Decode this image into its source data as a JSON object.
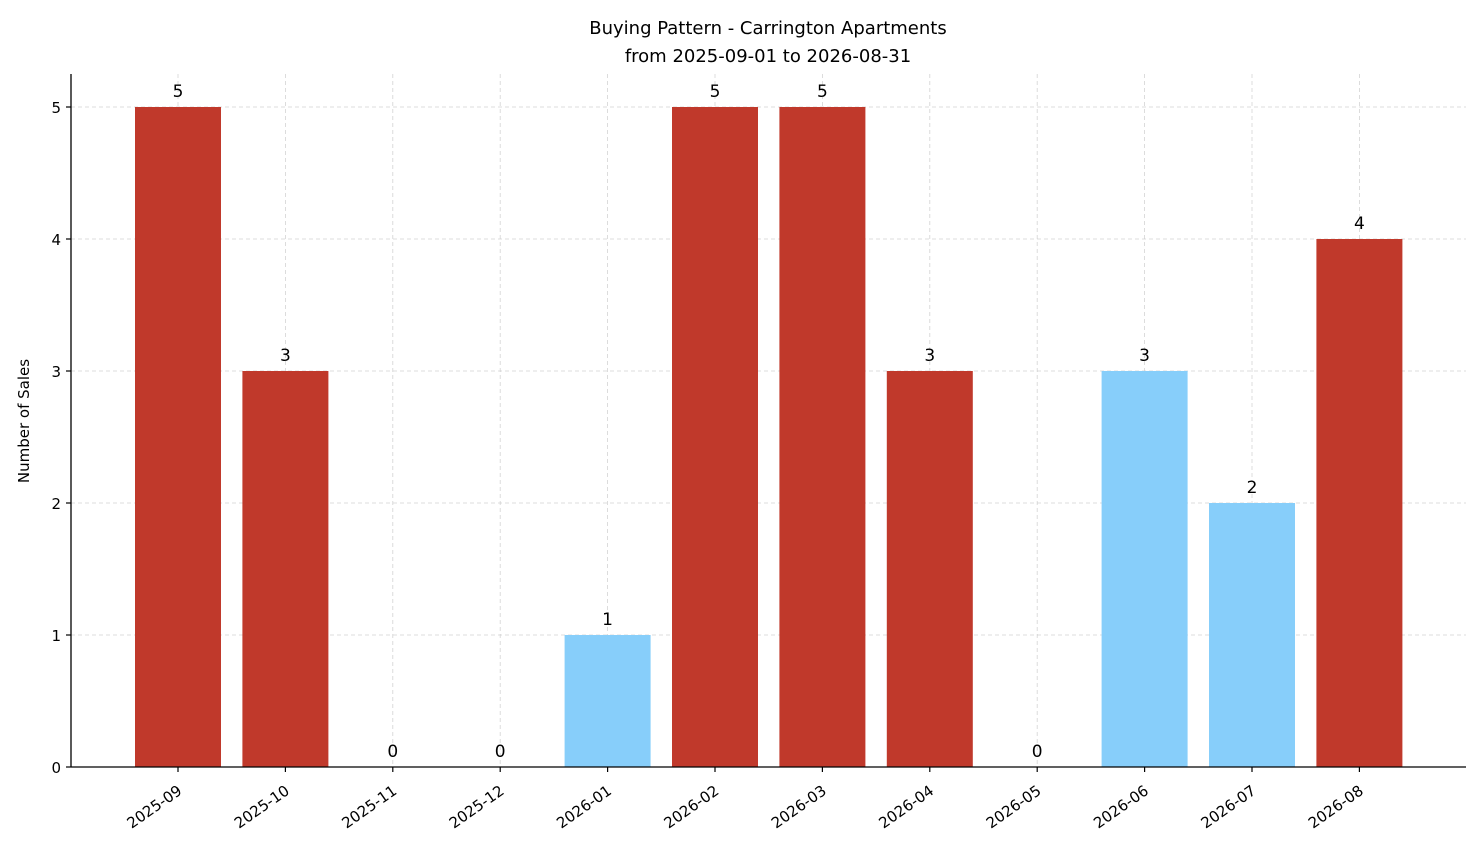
{
  "chart_data": {
    "type": "bar",
    "title": "Buying Pattern - Carrington Apartments",
    "subtitle": "from 2025-09-01 to 2026-08-31",
    "xlabel": "",
    "ylabel": "Number of Sales",
    "categories": [
      "2025-09",
      "2025-10",
      "2025-11",
      "2025-12",
      "2026-01",
      "2026-02",
      "2026-03",
      "2026-04",
      "2026-05",
      "2026-06",
      "2026-07",
      "2026-08"
    ],
    "values": [
      5,
      3,
      0,
      0,
      1,
      5,
      5,
      3,
      0,
      3,
      2,
      4
    ],
    "bar_colors": [
      "#c0392b",
      "#c0392b",
      "#c0392b",
      "#c0392b",
      "#87cefa",
      "#c0392b",
      "#c0392b",
      "#c0392b",
      "#c0392b",
      "#87cefa",
      "#87cefa",
      "#c0392b"
    ],
    "data_labels": [
      "5",
      "3",
      "0",
      "0",
      "1",
      "5",
      "5",
      "3",
      "0",
      "3",
      "2",
      "4"
    ],
    "ylim": [
      0,
      5.25
    ],
    "yticks": [
      0,
      1,
      2,
      3,
      4,
      5
    ],
    "grid": true,
    "legend": "none"
  }
}
